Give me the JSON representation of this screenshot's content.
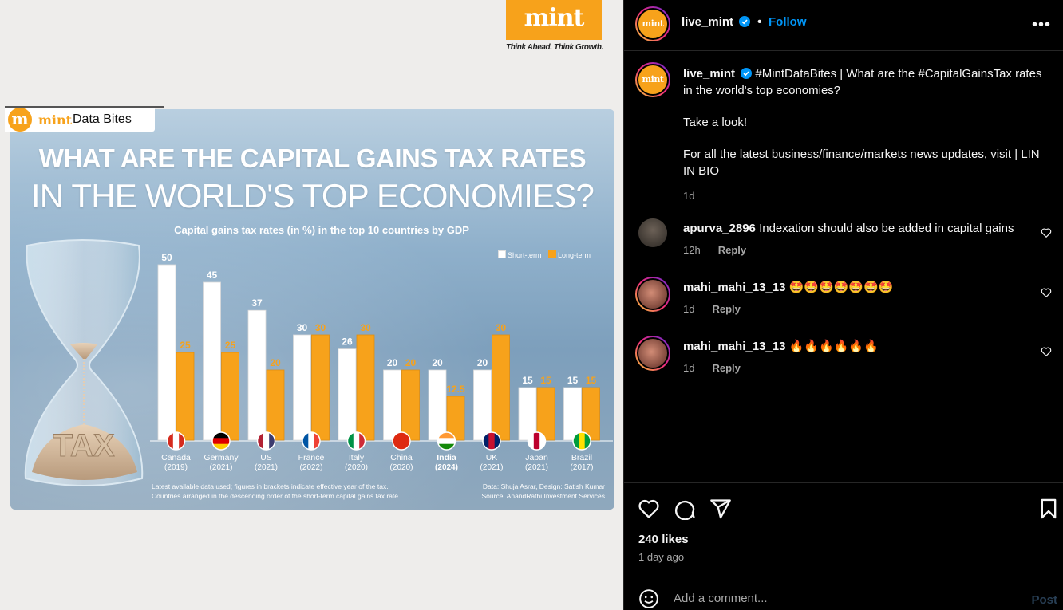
{
  "brand": {
    "logo_text": "mint",
    "tagline": "Think Ahead. Think Growth."
  },
  "infographic": {
    "badge_mark": "m",
    "badge_brand": "mint",
    "badge_label": "Data Bites",
    "headline_line1": "WHAT ARE THE CAPITAL GAINS TAX RATES",
    "headline_line2": "IN THE WORLD'S TOP ECONOMIES?",
    "hourglass_text": "TAX",
    "footnote_line1": "Latest available data used; figures in brackets indicate effective year of the tax.",
    "footnote_line2": "Countries arranged in the descending order of the short-term capital gains tax rate.",
    "credit_line1": "Data: Shuja Asrar, Design: Satish Kumar",
    "credit_line2": "Source: AnandRathi Investment Services"
  },
  "chart_data": {
    "type": "bar",
    "title": "Capital gains tax rates (in %) in the top 10 countries by GDP",
    "legend_position": "top-right",
    "categories": [
      "Canada",
      "Germany",
      "US",
      "France",
      "Italy",
      "China",
      "India",
      "UK",
      "Japan",
      "Brazil"
    ],
    "years": [
      "(2019)",
      "(2021)",
      "(2021)",
      "(2022)",
      "(2020)",
      "(2020)",
      "(2024)",
      "(2021)",
      "(2021)",
      "(2017)"
    ],
    "flags": [
      "canada-flag",
      "germany-flag",
      "us-flag",
      "france-flag",
      "italy-flag",
      "china-flag",
      "india-flag",
      "uk-flag",
      "japan-flag",
      "brazil-flag"
    ],
    "series": [
      {
        "name": "Short-term",
        "color": "#ffffff",
        "label_color": "#ffffff",
        "values": [
          50,
          45,
          37,
          30,
          26,
          20,
          20,
          20,
          15,
          15
        ],
        "labels": [
          "50",
          "45",
          "37",
          "30",
          "26",
          "20",
          "20",
          "20",
          "15",
          "15"
        ]
      },
      {
        "name": "Long-term",
        "color": "#f7a21b",
        "label_color": "#f7a21b",
        "values": [
          25,
          25,
          20,
          30,
          30,
          20,
          12.5,
          30,
          15,
          15
        ],
        "labels": [
          "25",
          "25",
          "20",
          "30",
          "30",
          "20",
          "12.5",
          "30",
          "15",
          "15"
        ]
      }
    ],
    "ylim": [
      0,
      50
    ],
    "grid": false
  },
  "header": {
    "username": "live_mint",
    "follow_label": "Follow",
    "more_icon": "more-options-icon"
  },
  "caption": {
    "username": "live_mint",
    "text": "#MintDataBites | What are the #CapitalGainsTax rates in the world's top economies?",
    "line2": "Take a look!",
    "line3": "For all the latest business/finance/markets news updates, visit | LIN IN BIO",
    "time": "1d"
  },
  "comments": [
    {
      "username": "apurva_2896",
      "text": "Indexation should also be added in capital gains",
      "time": "12h",
      "reply_label": "Reply"
    },
    {
      "username": "mahi_mahi_13_13",
      "text": "🤩🤩🤩🤩🤩🤩🤩",
      "time": "1d",
      "reply_label": "Reply"
    },
    {
      "username": "mahi_mahi_13_13",
      "text": "🔥🔥🔥🔥🔥🔥",
      "time": "1d",
      "reply_label": "Reply"
    }
  ],
  "actions": {
    "likes": "240 likes",
    "posted": "1 day ago"
  },
  "comment_box": {
    "placeholder": "Add a comment...",
    "post_label": "Post"
  },
  "colors": {
    "accent": "#0095f6",
    "brand": "#f7a21b",
    "background": "#000000"
  }
}
